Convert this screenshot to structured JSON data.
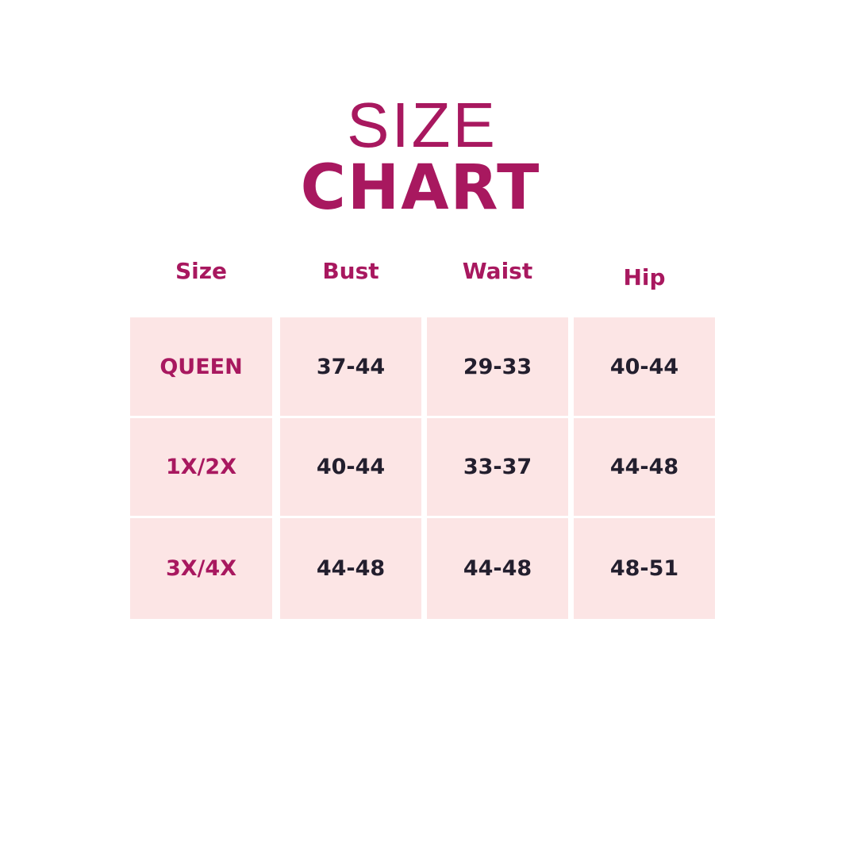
{
  "title": {
    "line1": "SIZE",
    "line2": "CHART"
  },
  "colors": {
    "accent": "#a8185f",
    "cell_bg": "#fce5e5",
    "value_text": "#231f2e"
  },
  "chart_data": {
    "type": "table",
    "columns": [
      "Size",
      "Bust",
      "Waist",
      "Hip"
    ],
    "rows": [
      [
        "QUEEN",
        "37-44",
        "29-33",
        "40-44"
      ],
      [
        "1X/2X",
        "40-44",
        "33-37",
        "44-48"
      ],
      [
        "3X/4X",
        "44-48",
        "44-48",
        "48-51"
      ]
    ]
  }
}
